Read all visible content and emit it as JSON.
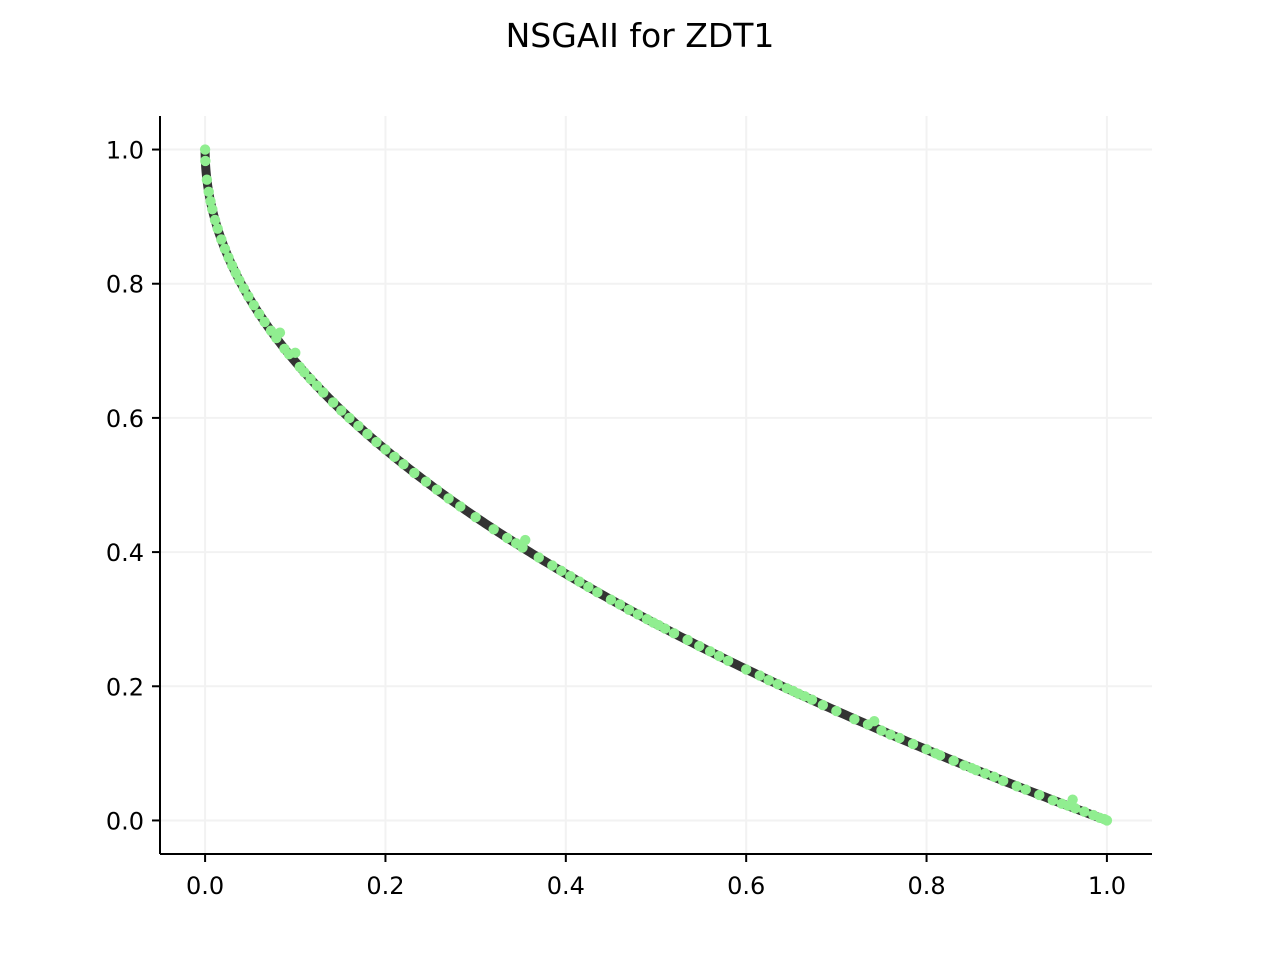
{
  "chart_data": {
    "type": "scatter",
    "title": "NSGAII for ZDT1",
    "xlabel": "",
    "ylabel": "",
    "xlim": [
      -0.05,
      1.05
    ],
    "ylim": [
      -0.05,
      1.05
    ],
    "x_ticks": [
      0.0,
      0.2,
      0.4,
      0.6,
      0.8,
      1.0
    ],
    "y_ticks": [
      0.0,
      0.2,
      0.4,
      0.6,
      0.8,
      1.0
    ],
    "x_tick_labels": [
      "0.0",
      "0.2",
      "0.4",
      "0.6",
      "0.8",
      "1.0"
    ],
    "y_tick_labels": [
      "0.0",
      "0.2",
      "0.4",
      "0.6",
      "0.8",
      "1.0"
    ],
    "grid": true,
    "legend": "none",
    "reference_front": {
      "description": "f2 = 1 - sqrt(f1)",
      "color": "#333333"
    },
    "series": [
      {
        "color": "#90ee90",
        "x": [
          0.0,
          0.0003,
          0.002,
          0.004,
          0.006,
          0.008,
          0.011,
          0.014,
          0.018,
          0.022,
          0.026,
          0.03,
          0.034,
          0.038,
          0.043,
          0.048,
          0.054,
          0.06,
          0.066,
          0.073,
          0.079,
          0.083,
          0.088,
          0.093,
          0.1,
          0.105,
          0.11,
          0.117,
          0.124,
          0.131,
          0.142,
          0.151,
          0.16,
          0.17,
          0.18,
          0.19,
          0.2,
          0.21,
          0.22,
          0.232,
          0.245,
          0.257,
          0.27,
          0.283,
          0.3,
          0.32,
          0.335,
          0.345,
          0.352,
          0.355,
          0.37,
          0.385,
          0.395,
          0.405,
          0.415,
          0.425,
          0.435,
          0.45,
          0.46,
          0.47,
          0.48,
          0.49,
          0.497,
          0.503,
          0.51,
          0.52,
          0.535,
          0.548,
          0.56,
          0.57,
          0.58,
          0.6,
          0.615,
          0.625,
          0.635,
          0.645,
          0.652,
          0.658,
          0.665,
          0.673,
          0.685,
          0.7,
          0.72,
          0.735,
          0.742,
          0.75,
          0.76,
          0.77,
          0.785,
          0.8,
          0.81,
          0.815,
          0.83,
          0.842,
          0.85,
          0.855,
          0.865,
          0.875,
          0.885,
          0.9,
          0.91,
          0.925,
          0.94,
          0.95,
          0.957,
          0.962,
          0.965,
          0.975,
          0.985,
          0.992,
          0.997,
          1.0
        ],
        "y": [
          1.0,
          0.983,
          0.955,
          0.937,
          0.923,
          0.911,
          0.895,
          0.882,
          0.866,
          0.852,
          0.839,
          0.827,
          0.816,
          0.805,
          0.793,
          0.781,
          0.768,
          0.755,
          0.743,
          0.73,
          0.719,
          0.727,
          0.703,
          0.695,
          0.697,
          0.676,
          0.668,
          0.658,
          0.648,
          0.638,
          0.623,
          0.611,
          0.6,
          0.588,
          0.576,
          0.564,
          0.553,
          0.542,
          0.531,
          0.518,
          0.505,
          0.493,
          0.48,
          0.468,
          0.452,
          0.434,
          0.421,
          0.413,
          0.407,
          0.418,
          0.392,
          0.38,
          0.372,
          0.364,
          0.356,
          0.348,
          0.34,
          0.329,
          0.322,
          0.314,
          0.307,
          0.3,
          0.295,
          0.291,
          0.286,
          0.279,
          0.269,
          0.26,
          0.252,
          0.245,
          0.238,
          0.225,
          0.216,
          0.209,
          0.203,
          0.197,
          0.193,
          0.189,
          0.185,
          0.18,
          0.172,
          0.163,
          0.151,
          0.143,
          0.148,
          0.134,
          0.128,
          0.123,
          0.114,
          0.106,
          0.1,
          0.097,
          0.089,
          0.082,
          0.078,
          0.075,
          0.07,
          0.065,
          0.059,
          0.051,
          0.046,
          0.038,
          0.03,
          0.025,
          0.022,
          0.031,
          0.018,
          0.013,
          0.008,
          0.004,
          0.002,
          0.0
        ]
      }
    ]
  }
}
